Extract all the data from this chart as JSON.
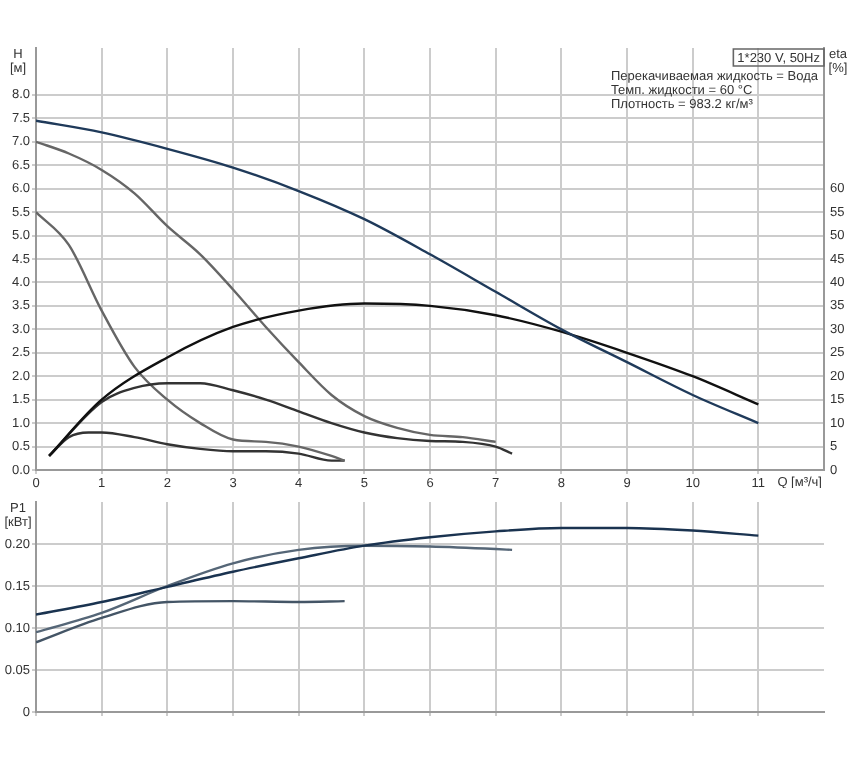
{
  "chart_data": [
    {
      "type": "line",
      "xlabel": "Q [м³/ч]",
      "ylabel": "H [м]",
      "y2label": "eta [%]",
      "annotations": [
        "1*230 V, 50Hz",
        "Перекачиваемая жидкость = Вода",
        "Темп. жидкости = 60 °C",
        "Плотность = 983.2 кг/м³"
      ],
      "xlim": [
        0,
        12
      ],
      "xticks": [
        0,
        1,
        2,
        3,
        4,
        5,
        6,
        7,
        8,
        9,
        10,
        11
      ],
      "ylim": [
        0,
        9
      ],
      "yticks": [
        {
          "value": 0,
          "label": "0.0"
        },
        0.5,
        {
          "value": 1,
          "label": "1.0"
        },
        1.5,
        {
          "value": 2,
          "label": "2.0"
        },
        2.5,
        {
          "value": 3,
          "label": "3.0"
        },
        3.5,
        {
          "value": 4,
          "label": "4.0"
        },
        4.5,
        {
          "value": 5,
          "label": "5.0"
        },
        5.5,
        {
          "value": 6,
          "label": "6.0"
        },
        6.5,
        {
          "value": 7,
          "label": "7.0"
        },
        7.5,
        {
          "value": 8,
          "label": "8.0"
        }
      ],
      "y2lim": [
        0,
        90
      ],
      "y2ticks": [
        0,
        5,
        10,
        15,
        20,
        25,
        30,
        35,
        40,
        45,
        50,
        55,
        60
      ],
      "grid": true,
      "legend": false,
      "marker": "none",
      "line_style": "solid",
      "series": [
        {
          "color": "#1f3a5a",
          "x": [
            0,
            1,
            2,
            3,
            4,
            5,
            6,
            7,
            8,
            9,
            10,
            11
          ],
          "values": [
            7.45,
            7.2,
            6.85,
            6.45,
            5.95,
            5.35,
            4.6,
            3.8,
            3.0,
            2.3,
            1.6,
            1.0
          ]
        },
        {
          "color": "#111111",
          "axis": "y2",
          "x": [
            0.2,
            1,
            2,
            3,
            4,
            5,
            6,
            7,
            8,
            9,
            10,
            11
          ],
          "values": [
            3,
            15,
            24,
            30.5,
            34,
            35.5,
            35,
            33,
            29.5,
            25,
            20,
            14
          ]
        },
        {
          "color": "#666666",
          "x": [
            0,
            0.5,
            1,
            1.5,
            2,
            2.5,
            3,
            3.5,
            4,
            4.5,
            5,
            5.5,
            6,
            6.5,
            7
          ],
          "values": [
            7.0,
            6.75,
            6.4,
            5.9,
            5.2,
            4.6,
            3.85,
            3.05,
            2.3,
            1.6,
            1.15,
            0.9,
            0.75,
            0.7,
            0.6
          ]
        },
        {
          "color": "#333333",
          "axis": "y2",
          "x": [
            0.2,
            1,
            1.5,
            2,
            2.5,
            3,
            3.5,
            4,
            4.5,
            5,
            5.5,
            6,
            6.5,
            7,
            7.25
          ],
          "values": [
            3,
            14.5,
            17.5,
            18.5,
            18.5,
            17,
            15,
            12.5,
            10,
            8,
            6.8,
            6.2,
            6,
            5,
            3.5
          ]
        },
        {
          "color": "#666666",
          "x": [
            0,
            0.5,
            1,
            1.5,
            2,
            2.5,
            3,
            3.5,
            4,
            4.5,
            4.7
          ],
          "values": [
            5.5,
            4.8,
            3.4,
            2.2,
            1.5,
            1.0,
            0.65,
            0.6,
            0.5,
            0.3,
            0.2
          ]
        },
        {
          "color": "#333333",
          "axis": "y2",
          "x": [
            0.2,
            0.5,
            0.8,
            1,
            1.5,
            2,
            2.5,
            3,
            3.5,
            4,
            4.5,
            4.7
          ],
          "values": [
            3,
            7,
            8,
            8,
            7,
            5.5,
            4.5,
            4,
            4,
            3.5,
            2,
            2
          ]
        }
      ]
    },
    {
      "type": "line",
      "ylabel": "P1 [кВт]",
      "tick_labels": "y",
      "xlim": [
        0,
        12
      ],
      "xticks": [
        0,
        1,
        2,
        3,
        4,
        5,
        6,
        7,
        8,
        9,
        10,
        11
      ],
      "ylim": [
        0,
        0.25
      ],
      "yticks": [
        0,
        0.05,
        {
          "value": 0.1,
          "label": "0.10"
        },
        0.15,
        {
          "value": 0.2,
          "label": "0.20"
        }
      ],
      "grid": true,
      "legend": false,
      "marker": "none",
      "line_style": "solid",
      "series": [
        {
          "color": "#1a3350",
          "x": [
            0,
            1,
            2,
            3,
            4,
            5,
            6,
            7,
            8,
            9,
            10,
            11
          ],
          "values": [
            0.116,
            0.131,
            0.149,
            0.167,
            0.183,
            0.198,
            0.208,
            0.215,
            0.219,
            0.219,
            0.216,
            0.21
          ]
        },
        {
          "color": "#556677",
          "x": [
            0,
            1,
            2,
            3,
            4,
            5,
            6,
            7,
            7.25
          ],
          "values": [
            0.095,
            0.118,
            0.15,
            0.177,
            0.193,
            0.198,
            0.197,
            0.194,
            0.193
          ]
        },
        {
          "color": "#445566",
          "x": [
            0,
            1,
            2,
            3,
            4,
            4.7
          ],
          "values": [
            0.083,
            0.112,
            0.131,
            0.132,
            0.131,
            0.132
          ]
        }
      ]
    }
  ]
}
